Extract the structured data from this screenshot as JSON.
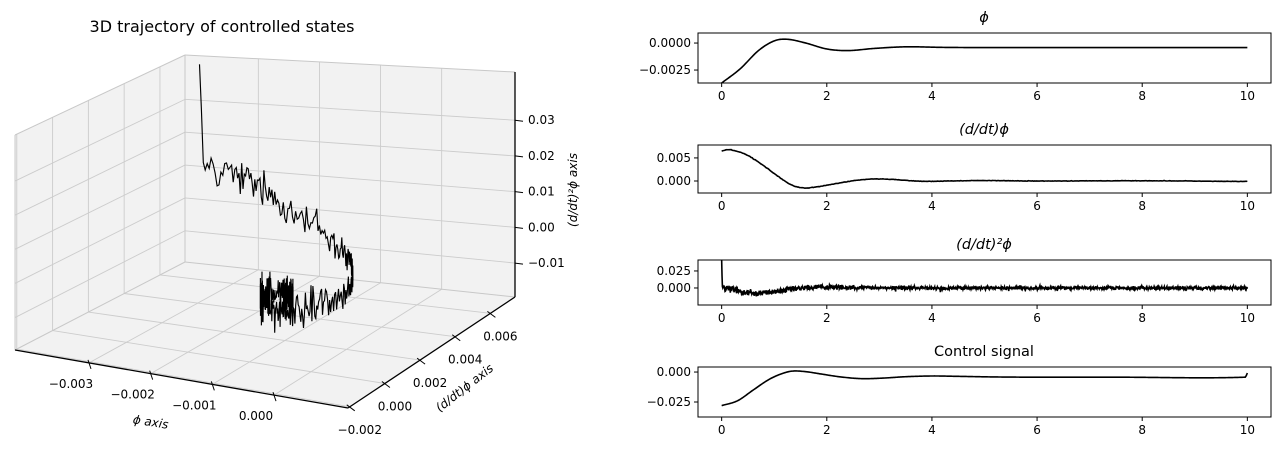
{
  "colors": {
    "line": "#000000",
    "pane": "#f2f2f2",
    "grid": "#cccccc",
    "edge_gray": "#c8c8c8",
    "spine": "#000000",
    "background": "#ffffff"
  },
  "chart_data": {
    "trajectory3d": {
      "type": "line3d",
      "title": "3D trajectory of controlled states",
      "xlabel": "ϕ axis",
      "ylabel": "(d/dt)ϕ axis",
      "zlabel": "(d/dt)²ϕ axis",
      "xlim": [
        -0.0042,
        0.0012
      ],
      "ylim": [
        -0.0021,
        0.0074
      ],
      "zlim": [
        -0.0195,
        0.0435
      ],
      "xticks": {
        "values": [
          -0.003,
          -0.002,
          -0.001,
          0.0
        ],
        "labels": [
          "−0.003",
          "−0.002",
          "−0.001",
          "0.000"
        ]
      },
      "yticks": {
        "values": [
          -0.002,
          0.0,
          0.002,
          0.004,
          0.006
        ],
        "labels": [
          "−0.002",
          "0.000",
          "0.002",
          "0.004",
          "0.006"
        ]
      },
      "zticks": {
        "values": [
          -0.01,
          0.0,
          0.01,
          0.02,
          0.03
        ],
        "labels": [
          "−0.01",
          "0.00",
          "0.01",
          "0.02",
          "0.03"
        ]
      },
      "source_signals": [
        "phi",
        "dphi",
        "ddphi"
      ],
      "t_range": [
        0,
        10
      ]
    },
    "panels": [
      {
        "id": "phi",
        "type": "line",
        "title": "ϕ",
        "title_math": true,
        "xlim": [
          -0.45,
          10.45
        ],
        "ylim": [
          -0.0037,
          0.00093
        ],
        "xticks": [
          0,
          2,
          4,
          6,
          8,
          10
        ],
        "yticks": {
          "values": [
            0.0,
            -0.0025
          ],
          "labels": [
            "0.0000",
            "−0.0025"
          ]
        },
        "keypoints": [
          [
            0,
            -0.0037
          ],
          [
            0.35,
            -0.0024
          ],
          [
            0.7,
            -0.0007
          ],
          [
            1.0,
            0.0002
          ],
          [
            1.25,
            0.00035
          ],
          [
            1.6,
            0.0
          ],
          [
            2.0,
            -0.00055
          ],
          [
            2.4,
            -0.0007
          ],
          [
            2.9,
            -0.0005
          ],
          [
            3.5,
            -0.00035
          ],
          [
            4.2,
            -0.0004
          ],
          [
            5,
            -0.00042
          ],
          [
            7,
            -0.00042
          ],
          [
            10,
            -0.00042
          ]
        ],
        "noise": {
          "seed": 0,
          "base": 0,
          "extra": 0,
          "decay": 1
        }
      },
      {
        "id": "dphi",
        "type": "line",
        "title": "(d/dt)ϕ",
        "title_math": true,
        "xlim": [
          -0.45,
          10.45
        ],
        "ylim": [
          -0.0026,
          0.0078
        ],
        "xticks": [
          0,
          2,
          4,
          6,
          8,
          10
        ],
        "yticks": {
          "values": [
            0.005,
            0.0
          ],
          "labels": [
            "0.005",
            "0.000"
          ]
        },
        "keypoints": [
          [
            0,
            0.0065
          ],
          [
            0.15,
            0.0068
          ],
          [
            0.45,
            0.0058
          ],
          [
            0.75,
            0.0037
          ],
          [
            1.05,
            0.0012
          ],
          [
            1.3,
            -0.0007
          ],
          [
            1.55,
            -0.0015
          ],
          [
            1.85,
            -0.0012
          ],
          [
            2.2,
            -0.0005
          ],
          [
            2.6,
            0.0002
          ],
          [
            2.95,
            0.00045
          ],
          [
            3.3,
            0.0003
          ],
          [
            3.8,
            -5e-05
          ],
          [
            4.3,
            0.0
          ],
          [
            5,
            0.0001
          ],
          [
            6,
            0.0
          ],
          [
            8,
            5e-05
          ],
          [
            10,
            -0.0001
          ]
        ],
        "noise": {
          "seed": 3,
          "base": 5e-05,
          "extra": 4e-05,
          "decay": 2
        }
      },
      {
        "id": "ddphi",
        "type": "line",
        "title": "(d/dt)²ϕ",
        "title_math": true,
        "xlim": [
          -0.45,
          10.45
        ],
        "ylim": [
          -0.025,
          0.0411
        ],
        "xticks": [
          0,
          2,
          4,
          6,
          8,
          10
        ],
        "yticks": {
          "values": [
            0.025,
            0.0
          ],
          "labels": [
            "0.025",
            "0.000"
          ]
        },
        "keypoints": [
          [
            0,
            0.002
          ],
          [
            0.2,
            -0.0025
          ],
          [
            0.45,
            -0.0062
          ],
          [
            0.65,
            -0.0078
          ],
          [
            0.9,
            -0.0068
          ],
          [
            1.15,
            -0.004
          ],
          [
            1.45,
            -0.001
          ],
          [
            1.8,
            0.0008
          ],
          [
            2.2,
            0.0012
          ],
          [
            2.7,
            0.0008
          ],
          [
            3.2,
            0.0002
          ],
          [
            4,
            0.0
          ],
          [
            6,
            0.0
          ],
          [
            10,
            0.0
          ]
        ],
        "noise": {
          "seed": 12345,
          "base": 0.0032,
          "extra": 0.0045,
          "decay": 1.4,
          "spike_samples": [
            0.041,
            0.018
          ]
        }
      },
      {
        "id": "control",
        "type": "line",
        "title": "Control signal",
        "title_math": false,
        "xlim": [
          -0.45,
          10.45
        ],
        "ylim": [
          -0.0375,
          0.0042
        ],
        "xticks": [
          0,
          2,
          4,
          6,
          8,
          10
        ],
        "yticks": {
          "values": [
            0.0,
            -0.025
          ],
          "labels": [
            "0.000",
            "−0.025"
          ]
        },
        "keypoints": [
          [
            0,
            -0.028
          ],
          [
            0.3,
            -0.024
          ],
          [
            0.6,
            -0.015
          ],
          [
            0.9,
            -0.0062
          ],
          [
            1.15,
            -0.0013
          ],
          [
            1.35,
            0.0008
          ],
          [
            1.6,
            0.0003
          ],
          [
            1.9,
            -0.0017
          ],
          [
            2.25,
            -0.004
          ],
          [
            2.65,
            -0.0055
          ],
          [
            3.05,
            -0.0051
          ],
          [
            3.5,
            -0.0039
          ],
          [
            4.0,
            -0.0033
          ],
          [
            4.5,
            -0.0036
          ],
          [
            5.2,
            -0.0041
          ],
          [
            6,
            -0.0043
          ],
          [
            7.5,
            -0.0043
          ],
          [
            9.96,
            -0.0043
          ],
          [
            10,
            -0.0008
          ]
        ],
        "noise": {
          "seed": 0,
          "base": 0,
          "extra": 0,
          "decay": 1
        }
      }
    ]
  }
}
